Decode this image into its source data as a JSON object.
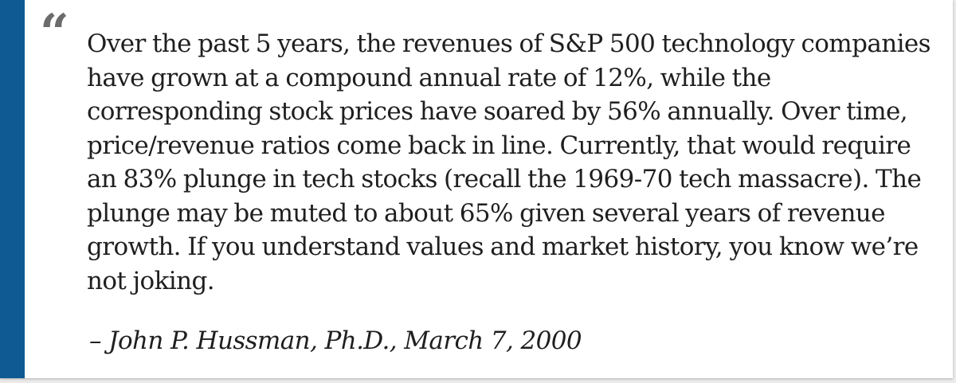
{
  "colors": {
    "accent_bar": "#0f5a92",
    "text": "#1f1f1f",
    "quote_mark": "#6b6b6b",
    "background": "#ffffff"
  },
  "quote": {
    "mark": "“",
    "text": "Over the past 5 years, the revenues of S&P 500 technology companies have grown at a compound annual rate of 12%, while the corresponding stock prices have soared by 56% annually. Over time, price/revenue ratios come back in line. Currently, that would require an 83% plunge in tech stocks (recall the 1969-70 tech massacre). The plunge may be muted to about 65% given several years of revenue growth. If you understand values and market history, you know we’re not joking.",
    "attribution": "– John P. Hussman, Ph.D., March 7, 2000"
  }
}
